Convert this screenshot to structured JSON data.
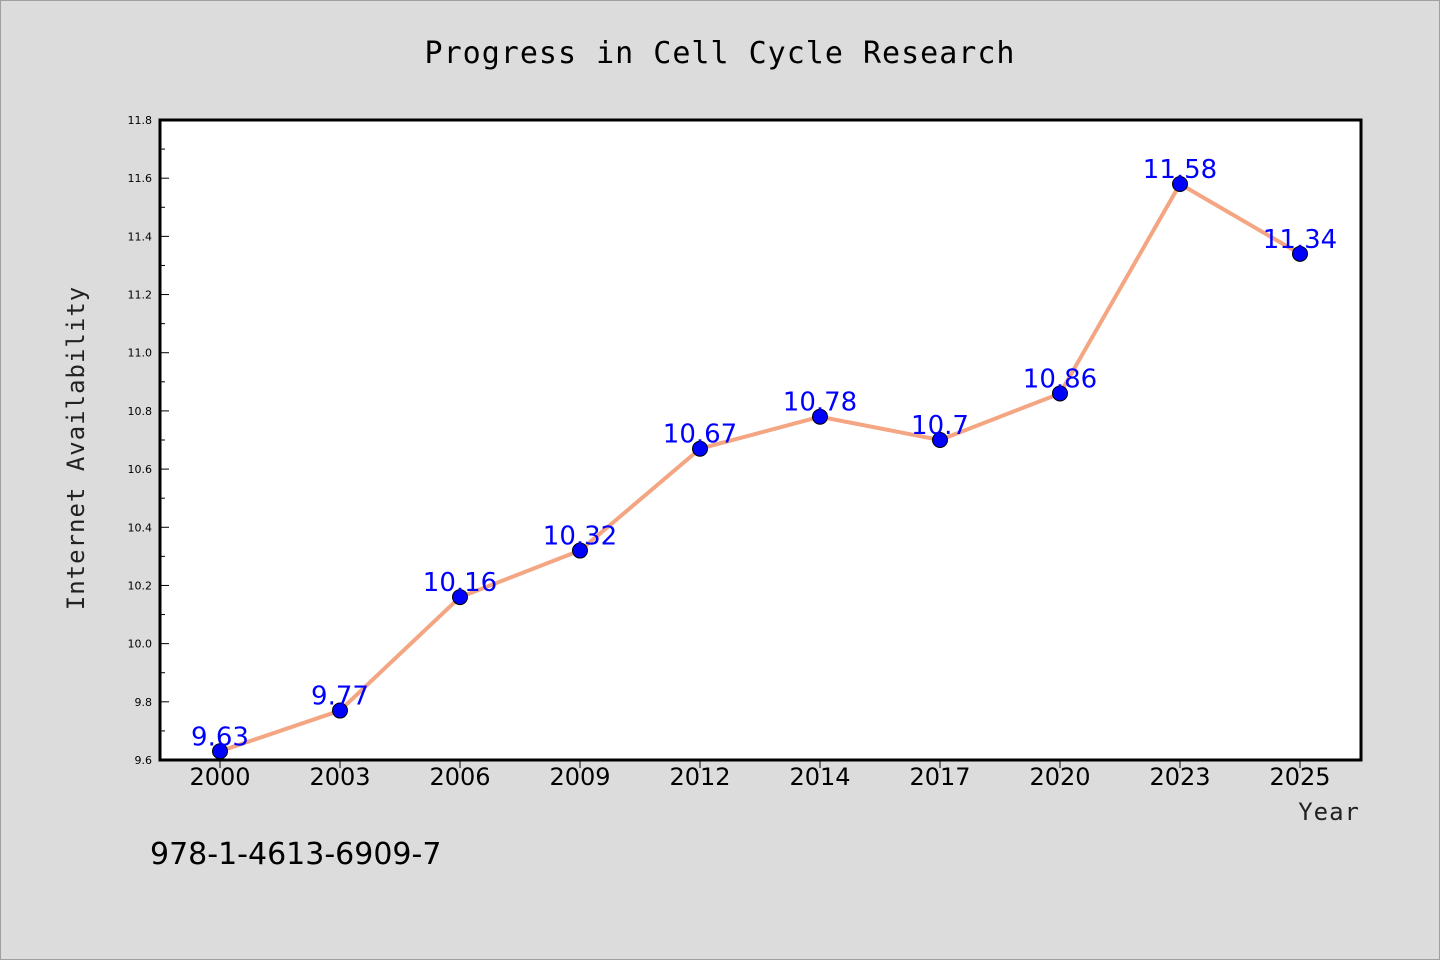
{
  "chart_data": {
    "type": "line",
    "title": "Progress in Cell Cycle Research",
    "xlabel": "Year",
    "ylabel": "Internet Availability",
    "categories": [
      "2000",
      "2003",
      "2006",
      "2009",
      "2012",
      "2014",
      "2017",
      "2020",
      "2023",
      "2025"
    ],
    "series": [
      {
        "values": [
          9.63,
          9.77,
          10.16,
          10.32,
          10.67,
          10.78,
          10.7,
          10.86,
          11.58,
          11.34
        ],
        "labels": [
          "9.63",
          "9.77",
          "10.16",
          "10.32",
          "10.67",
          "10.78",
          "10.7",
          "10.86",
          "11.58",
          "11.34"
        ],
        "line_color": "#f4a582",
        "marker_color": "#0000ff",
        "label_color": "#0000ff"
      }
    ],
    "ylim": [
      9.6,
      11.8
    ],
    "yticks": [
      "9.6",
      "9.8",
      "10.0",
      "10.2",
      "10.4",
      "10.6",
      "10.8",
      "11.0",
      "11.2",
      "11.4",
      "11.6",
      "11.8"
    ],
    "grid": false,
    "legend": "none"
  },
  "footer": {
    "isbn": "978-1-4613-6909-7"
  },
  "colors": {
    "background": "#dcdcdc",
    "plot_background": "#ffffff"
  }
}
